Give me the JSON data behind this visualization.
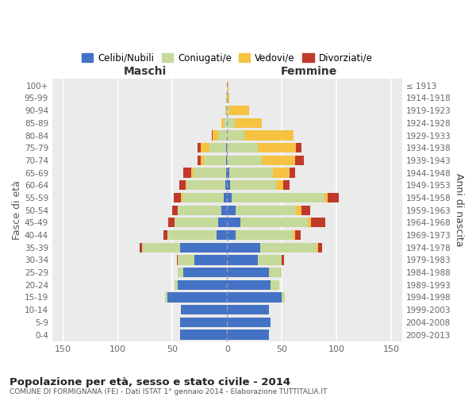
{
  "age_groups": [
    "0-4",
    "5-9",
    "10-14",
    "15-19",
    "20-24",
    "25-29",
    "30-34",
    "35-39",
    "40-44",
    "45-49",
    "50-54",
    "55-59",
    "60-64",
    "65-69",
    "70-74",
    "75-79",
    "80-84",
    "85-89",
    "90-94",
    "95-99",
    "100+"
  ],
  "birth_years": [
    "2009-2013",
    "2004-2008",
    "1999-2003",
    "1994-1998",
    "1989-1993",
    "1984-1988",
    "1979-1983",
    "1974-1978",
    "1969-1973",
    "1964-1968",
    "1959-1963",
    "1954-1958",
    "1949-1953",
    "1944-1948",
    "1939-1943",
    "1934-1938",
    "1929-1933",
    "1924-1928",
    "1919-1923",
    "1914-1918",
    "≤ 1913"
  ],
  "maschi": {
    "celibi": [
      43,
      43,
      42,
      55,
      45,
      40,
      30,
      43,
      10,
      8,
      5,
      3,
      2,
      1,
      1,
      1,
      0,
      0,
      0,
      0,
      0
    ],
    "coniugati": [
      0,
      0,
      0,
      2,
      3,
      5,
      15,
      35,
      45,
      40,
      40,
      38,
      35,
      30,
      20,
      15,
      8,
      3,
      1,
      1,
      0
    ],
    "vedovi": [
      0,
      0,
      0,
      0,
      0,
      0,
      0,
      0,
      0,
      0,
      0,
      1,
      1,
      2,
      3,
      8,
      5,
      2,
      1,
      0,
      0
    ],
    "divorziati": [
      0,
      0,
      0,
      0,
      0,
      0,
      1,
      2,
      3,
      6,
      5,
      7,
      6,
      7,
      3,
      3,
      1,
      0,
      0,
      0,
      0
    ]
  },
  "femmine": {
    "nubili": [
      38,
      40,
      38,
      50,
      40,
      38,
      28,
      30,
      8,
      12,
      8,
      4,
      3,
      2,
      0,
      0,
      0,
      0,
      0,
      0,
      0
    ],
    "coniugate": [
      0,
      0,
      0,
      3,
      8,
      12,
      22,
      52,
      52,
      62,
      55,
      85,
      42,
      40,
      32,
      28,
      16,
      7,
      2,
      0,
      0
    ],
    "vedove": [
      0,
      0,
      0,
      0,
      0,
      0,
      0,
      1,
      2,
      3,
      5,
      3,
      6,
      15,
      30,
      35,
      45,
      25,
      18,
      2,
      1
    ],
    "divorziate": [
      0,
      0,
      0,
      0,
      0,
      0,
      2,
      4,
      5,
      13,
      8,
      10,
      6,
      5,
      8,
      5,
      0,
      0,
      0,
      0,
      0
    ]
  },
  "colors": {
    "celibi_nubili": "#4472c4",
    "coniugati": "#c5d99a",
    "vedovi": "#f5c242",
    "divorziati": "#c0392b"
  },
  "xlim": 160,
  "title": "Popolazione per età, sesso e stato civile - 2014",
  "subtitle": "COMUNE DI FORMIGNANA (FE) - Dati ISTAT 1° gennaio 2014 - Elaborazione TUTTITALIA.IT",
  "ylabel": "Fasce di età",
  "right_label": "Anni di nascita",
  "left_header": "Maschi",
  "right_header": "Femmine",
  "legend_labels": [
    "Celibi/Nubili",
    "Coniugati/e",
    "Vedovi/e",
    "Divorziati/e"
  ],
  "bg_color": "#ebebeb"
}
